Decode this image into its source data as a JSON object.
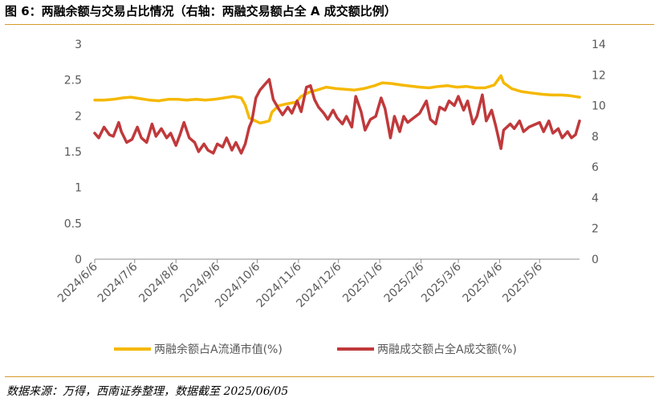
{
  "title": "图 6：两融余额与交易占比情况（右轴：两融交易额占全 A 成交额比例）",
  "source": "数据来源：万得，西南证券整理，数据截至 2025/06/05",
  "colors": {
    "series1": "#f5b800",
    "series2": "#c0393b",
    "axis": "#8c8c8c",
    "rule": "#d59a2a",
    "text": "#595959"
  },
  "chart_data": {
    "type": "line",
    "grid": false,
    "legend_position": "bottom",
    "y_left": {
      "min": 0,
      "max": 3,
      "ticks": [
        "0",
        "0.5",
        "1",
        "1.5",
        "2",
        "2.5",
        "3"
      ]
    },
    "y_right": {
      "min": 0,
      "max": 14,
      "ticks": [
        "0",
        "2",
        "4",
        "6",
        "8",
        "10",
        "12",
        "14"
      ]
    },
    "x_range": [
      "2024-06-06",
      "2025-06-05"
    ],
    "x_ticks": [
      "2024/6/6",
      "2024/7/6",
      "2024/8/6",
      "2024/9/6",
      "2024/10/6",
      "2024/11/6",
      "2024/12/6",
      "2025/1/6",
      "2025/2/6",
      "2025/3/6",
      "2025/4/6",
      "2025/5/6"
    ],
    "x_tick_dates": [
      "2024-06-06",
      "2024-07-06",
      "2024-08-06",
      "2024-09-06",
      "2024-10-06",
      "2024-11-06",
      "2024-12-06",
      "2025-01-06",
      "2025-02-06",
      "2025-03-06",
      "2025-04-06",
      "2025-05-06"
    ],
    "series": [
      {
        "name": "两融余额占A流通市值(%)",
        "axis": "left",
        "points": [
          [
            "2024-06-06",
            2.22
          ],
          [
            "2024-06-13",
            2.22
          ],
          [
            "2024-06-20",
            2.23
          ],
          [
            "2024-06-27",
            2.25
          ],
          [
            "2024-07-03",
            2.26
          ],
          [
            "2024-07-10",
            2.24
          ],
          [
            "2024-07-17",
            2.22
          ],
          [
            "2024-07-24",
            2.21
          ],
          [
            "2024-07-31",
            2.23
          ],
          [
            "2024-08-07",
            2.23
          ],
          [
            "2024-08-14",
            2.22
          ],
          [
            "2024-08-21",
            2.23
          ],
          [
            "2024-08-28",
            2.22
          ],
          [
            "2024-09-04",
            2.23
          ],
          [
            "2024-09-11",
            2.25
          ],
          [
            "2024-09-18",
            2.27
          ],
          [
            "2024-09-24",
            2.25
          ],
          [
            "2024-09-27",
            2.15
          ],
          [
            "2024-09-30",
            1.97
          ],
          [
            "2024-10-08",
            1.9
          ],
          [
            "2024-10-11",
            1.91
          ],
          [
            "2024-10-15",
            1.93
          ],
          [
            "2024-10-17",
            2.05
          ],
          [
            "2024-10-22",
            2.14
          ],
          [
            "2024-10-29",
            2.17
          ],
          [
            "2024-11-04",
            2.19
          ],
          [
            "2024-11-08",
            2.27
          ],
          [
            "2024-11-14",
            2.33
          ],
          [
            "2024-11-20",
            2.36
          ],
          [
            "2024-11-27",
            2.4
          ],
          [
            "2024-12-04",
            2.38
          ],
          [
            "2024-12-11",
            2.37
          ],
          [
            "2024-12-18",
            2.36
          ],
          [
            "2024-12-25",
            2.38
          ],
          [
            "2025-01-02",
            2.42
          ],
          [
            "2025-01-08",
            2.46
          ],
          [
            "2025-01-15",
            2.45
          ],
          [
            "2025-01-22",
            2.43
          ],
          [
            "2025-02-05",
            2.4
          ],
          [
            "2025-02-12",
            2.39
          ],
          [
            "2025-02-19",
            2.41
          ],
          [
            "2025-02-26",
            2.42
          ],
          [
            "2025-03-05",
            2.4
          ],
          [
            "2025-03-12",
            2.41
          ],
          [
            "2025-03-19",
            2.39
          ],
          [
            "2025-03-26",
            2.39
          ],
          [
            "2025-04-02",
            2.43
          ],
          [
            "2025-04-07",
            2.56
          ],
          [
            "2025-04-09",
            2.46
          ],
          [
            "2025-04-15",
            2.38
          ],
          [
            "2025-04-22",
            2.34
          ],
          [
            "2025-04-29",
            2.32
          ],
          [
            "2025-05-08",
            2.3
          ],
          [
            "2025-05-15",
            2.29
          ],
          [
            "2025-05-22",
            2.29
          ],
          [
            "2025-05-29",
            2.28
          ],
          [
            "2025-06-05",
            2.26
          ]
        ]
      },
      {
        "name": "两融成交额占全A成交额(%)",
        "axis": "right",
        "points": [
          [
            "2024-06-06",
            8.2
          ],
          [
            "2024-06-09",
            7.9
          ],
          [
            "2024-06-13",
            8.6
          ],
          [
            "2024-06-17",
            8.1
          ],
          [
            "2024-06-20",
            8.0
          ],
          [
            "2024-06-24",
            8.9
          ],
          [
            "2024-06-26",
            8.3
          ],
          [
            "2024-06-30",
            7.6
          ],
          [
            "2024-07-04",
            7.8
          ],
          [
            "2024-07-08",
            8.6
          ],
          [
            "2024-07-11",
            7.9
          ],
          [
            "2024-07-15",
            7.6
          ],
          [
            "2024-07-19",
            8.8
          ],
          [
            "2024-07-22",
            8.0
          ],
          [
            "2024-07-26",
            8.5
          ],
          [
            "2024-07-30",
            7.9
          ],
          [
            "2024-08-02",
            8.2
          ],
          [
            "2024-08-06",
            7.4
          ],
          [
            "2024-08-09",
            8.1
          ],
          [
            "2024-08-12",
            8.9
          ],
          [
            "2024-08-16",
            7.9
          ],
          [
            "2024-08-20",
            7.6
          ],
          [
            "2024-08-23",
            7.0
          ],
          [
            "2024-08-27",
            7.5
          ],
          [
            "2024-08-30",
            7.1
          ],
          [
            "2024-09-03",
            6.9
          ],
          [
            "2024-09-06",
            7.5
          ],
          [
            "2024-09-10",
            7.3
          ],
          [
            "2024-09-13",
            7.9
          ],
          [
            "2024-09-17",
            7.1
          ],
          [
            "2024-09-20",
            7.6
          ],
          [
            "2024-09-24",
            6.9
          ],
          [
            "2024-09-27",
            7.5
          ],
          [
            "2024-09-30",
            8.6
          ],
          [
            "2024-10-02",
            9.0
          ],
          [
            "2024-10-05",
            10.5
          ],
          [
            "2024-10-08",
            11.0
          ],
          [
            "2024-10-11",
            11.3
          ],
          [
            "2024-10-15",
            11.7
          ],
          [
            "2024-10-18",
            10.4
          ],
          [
            "2024-10-22",
            9.8
          ],
          [
            "2024-10-25",
            9.4
          ],
          [
            "2024-10-29",
            9.9
          ],
          [
            "2024-11-01",
            9.5
          ],
          [
            "2024-11-05",
            10.3
          ],
          [
            "2024-11-08",
            9.6
          ],
          [
            "2024-11-12",
            11.2
          ],
          [
            "2024-11-15",
            11.3
          ],
          [
            "2024-11-18",
            10.4
          ],
          [
            "2024-11-21",
            9.9
          ],
          [
            "2024-11-25",
            9.5
          ],
          [
            "2024-11-28",
            9.1
          ],
          [
            "2024-12-02",
            9.7
          ],
          [
            "2024-12-05",
            9.2
          ],
          [
            "2024-12-09",
            8.8
          ],
          [
            "2024-12-12",
            9.3
          ],
          [
            "2024-12-16",
            8.6
          ],
          [
            "2024-12-19",
            10.6
          ],
          [
            "2024-12-23",
            9.6
          ],
          [
            "2024-12-26",
            8.4
          ],
          [
            "2024-12-30",
            9.1
          ],
          [
            "2025-01-03",
            9.3
          ],
          [
            "2025-01-07",
            10.5
          ],
          [
            "2025-01-10",
            9.8
          ],
          [
            "2025-01-14",
            7.9
          ],
          [
            "2025-01-17",
            9.3
          ],
          [
            "2025-01-21",
            8.3
          ],
          [
            "2025-01-24",
            9.3
          ],
          [
            "2025-01-27",
            8.9
          ],
          [
            "2025-02-05",
            9.5
          ],
          [
            "2025-02-10",
            10.3
          ],
          [
            "2025-02-13",
            9.1
          ],
          [
            "2025-02-17",
            8.8
          ],
          [
            "2025-02-20",
            9.9
          ],
          [
            "2025-02-24",
            9.7
          ],
          [
            "2025-02-27",
            10.3
          ],
          [
            "2025-03-03",
            10.0
          ],
          [
            "2025-03-06",
            10.6
          ],
          [
            "2025-03-10",
            9.7
          ],
          [
            "2025-03-13",
            10.3
          ],
          [
            "2025-03-17",
            8.8
          ],
          [
            "2025-03-20",
            9.3
          ],
          [
            "2025-03-24",
            10.7
          ],
          [
            "2025-03-27",
            9.0
          ],
          [
            "2025-03-31",
            9.7
          ],
          [
            "2025-04-03",
            8.7
          ],
          [
            "2025-04-07",
            7.2
          ],
          [
            "2025-04-09",
            8.4
          ],
          [
            "2025-04-14",
            8.8
          ],
          [
            "2025-04-17",
            8.5
          ],
          [
            "2025-04-21",
            9.0
          ],
          [
            "2025-04-24",
            8.3
          ],
          [
            "2025-04-28",
            8.6
          ],
          [
            "2025-05-06",
            8.9
          ],
          [
            "2025-05-09",
            8.3
          ],
          [
            "2025-05-13",
            9.0
          ],
          [
            "2025-05-16",
            8.2
          ],
          [
            "2025-05-20",
            8.5
          ],
          [
            "2025-05-23",
            7.9
          ],
          [
            "2025-05-27",
            8.3
          ],
          [
            "2025-05-30",
            7.9
          ],
          [
            "2025-06-02",
            8.1
          ],
          [
            "2025-06-05",
            9.0
          ]
        ]
      }
    ]
  }
}
